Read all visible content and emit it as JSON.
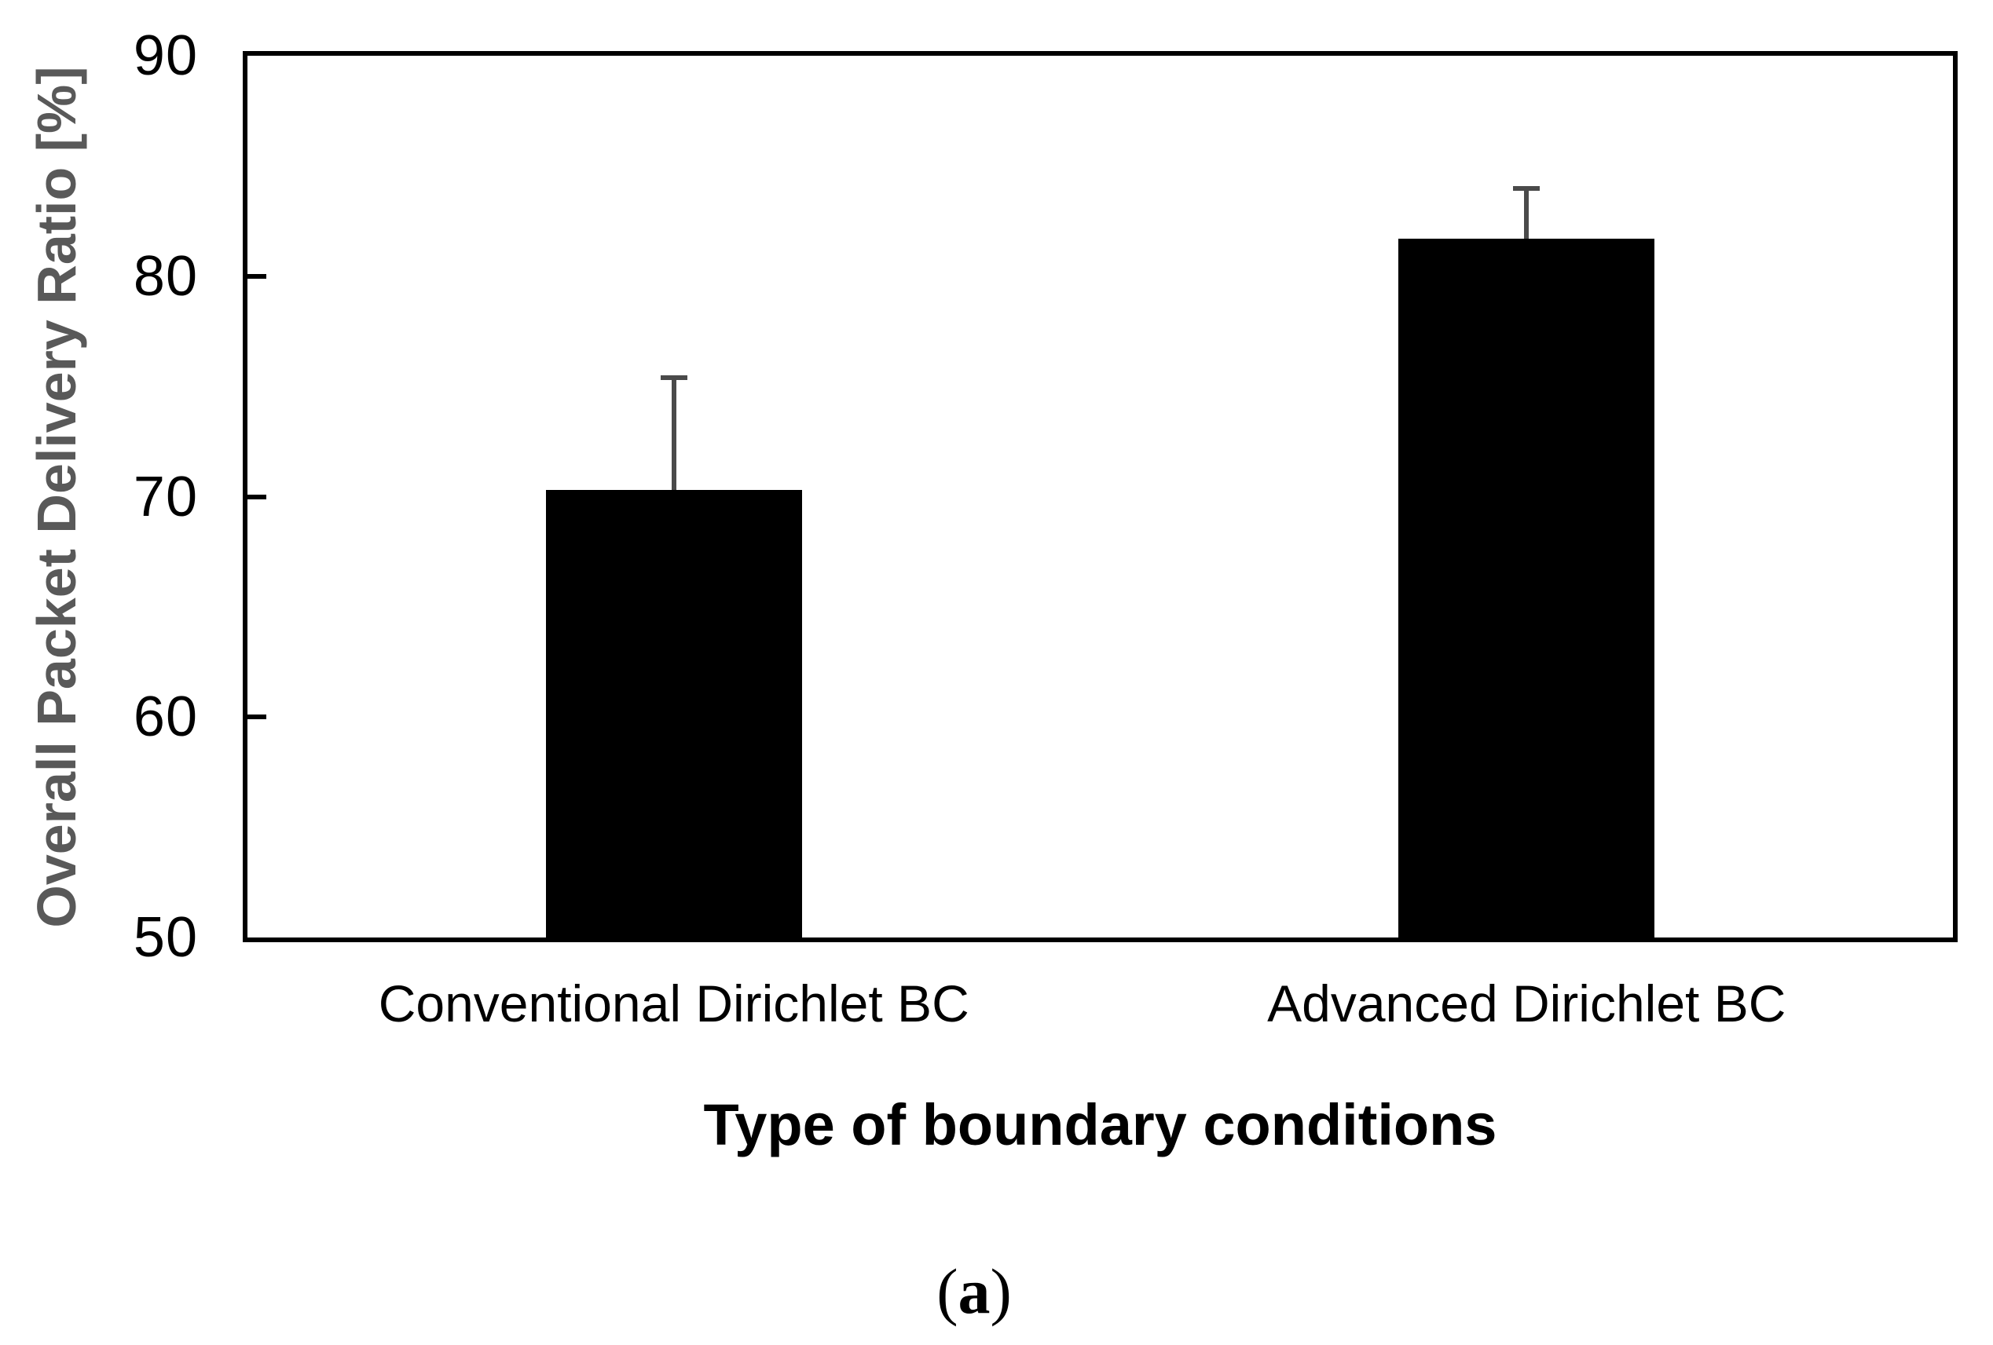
{
  "chart_data": {
    "type": "bar",
    "title": "",
    "xlabel": "Type of boundary conditions",
    "ylabel": "Overall Packet Delivery Ratio [%]",
    "categories": [
      "Conventional Dirichlet BC",
      "Advanced Dirichlet BC"
    ],
    "values": [
      70.3,
      81.7
    ],
    "error_up": [
      5.2,
      2.4
    ],
    "ylim": [
      50,
      90
    ],
    "y_ticks": [
      90,
      80,
      70,
      60,
      50
    ],
    "bar_width_frac": 0.15,
    "grid": "off",
    "legend": "none",
    "colors": {
      "bar": "#000000",
      "error_bar": "#4a4a4a",
      "axis": "#000000",
      "ylabel_text": "#595959",
      "tick_label_text": "#000000"
    },
    "caption": {
      "open": "(",
      "letter": "a",
      "close": ")"
    }
  }
}
